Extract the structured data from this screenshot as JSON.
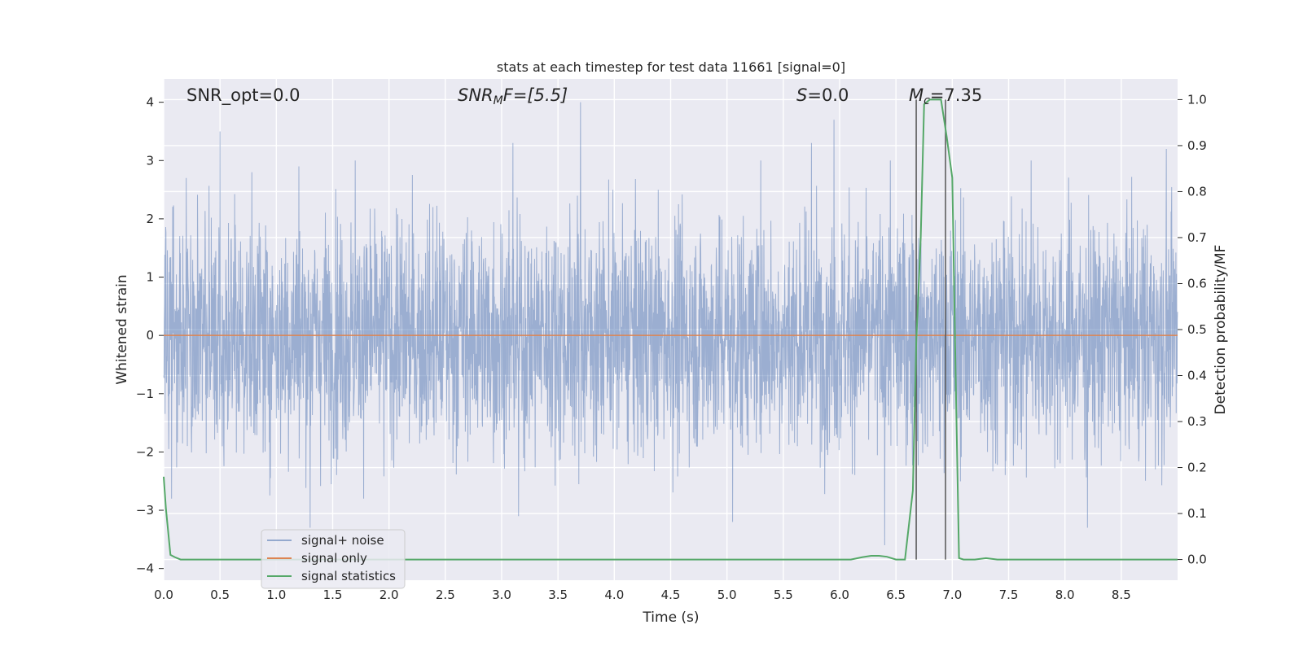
{
  "chart_data": {
    "type": "line",
    "title": "stats at each timestep for test data 11661 [signal=0]",
    "xlabel": "Time (s)",
    "ylabel": "Whitened strain",
    "ylabel_right": "Detection probability/MF",
    "xlim": [
      0.0,
      9.0
    ],
    "ylim": [
      -4.2,
      4.4
    ],
    "ylim_right": [
      -0.045,
      1.045
    ],
    "xticks": [
      "0.0",
      "0.5",
      "1.0",
      "1.5",
      "2.0",
      "2.5",
      "3.0",
      "3.5",
      "4.0",
      "4.5",
      "5.0",
      "5.5",
      "6.0",
      "6.5",
      "7.0",
      "7.5",
      "8.0",
      "8.5"
    ],
    "yticks": [
      "4",
      "3",
      "2",
      "1",
      "0",
      "−1",
      "−2",
      "−3",
      "−4"
    ],
    "yticks_right": [
      "1.0",
      "0.9",
      "0.8",
      "0.7",
      "0.6",
      "0.5",
      "0.4",
      "0.3",
      "0.2",
      "0.1",
      "0.0"
    ],
    "grid": true,
    "legend_position": "lower-left",
    "annotations": {
      "snr_opt": "SNR_opt=0.0",
      "snr_mf_main": "SNR",
      "snr_mf_sub": "M",
      "snr_mf_rest": "F=[5.5]",
      "s_main": "S",
      "s_rest": "=0.0",
      "mc_main": "M",
      "mc_sub": "c",
      "mc_rest": "=7.35"
    },
    "vertical_lines_x": [
      6.68,
      6.94
    ],
    "series": [
      {
        "name": "signal+ noise",
        "color": "#4c72b0",
        "axis": "left",
        "description_envelope": {
          "x_range": [
            0.0,
            9.0
          ],
          "approx_sigma": 1.0,
          "peak_spikes": [
            {
              "x": 0.5,
              "y": 3.5
            },
            {
              "x": 0.2,
              "y": 2.7
            },
            {
              "x": 1.2,
              "y": 2.9
            },
            {
              "x": 1.3,
              "y": -3.3
            },
            {
              "x": 1.7,
              "y": 3.0
            },
            {
              "x": 3.1,
              "y": 3.3
            },
            {
              "x": 3.15,
              "y": -3.1
            },
            {
              "x": 3.7,
              "y": 4.0
            },
            {
              "x": 5.05,
              "y": -3.2
            },
            {
              "x": 5.3,
              "y": 3.0
            },
            {
              "x": 5.75,
              "y": 3.3
            },
            {
              "x": 5.95,
              "y": 3.7
            },
            {
              "x": 6.4,
              "y": -3.6
            },
            {
              "x": 6.45,
              "y": 3.0
            },
            {
              "x": 7.7,
              "y": 3.0
            },
            {
              "x": 8.2,
              "y": -3.3
            },
            {
              "x": 8.9,
              "y": 3.2
            }
          ]
        }
      },
      {
        "name": "signal only",
        "color": "#dd8452",
        "axis": "left",
        "x": [
          0.0,
          9.0
        ],
        "y": [
          0.0,
          0.0
        ]
      },
      {
        "name": "signal statistics",
        "color": "#55a868",
        "axis": "right",
        "x": [
          0.0,
          0.02,
          0.06,
          0.1,
          0.15,
          6.1,
          6.2,
          6.28,
          6.35,
          6.42,
          6.5,
          6.58,
          6.65,
          6.68,
          6.72,
          6.75,
          6.8,
          6.86,
          6.9,
          6.95,
          7.0,
          7.03,
          7.06,
          7.1,
          7.2,
          7.3,
          7.4,
          7.5,
          9.0
        ],
        "y": [
          0.18,
          0.11,
          0.01,
          0.005,
          0.0,
          0.0,
          0.005,
          0.008,
          0.008,
          0.006,
          0.0,
          0.0,
          0.15,
          0.47,
          0.7,
          0.99,
          1.0,
          1.0,
          1.0,
          0.92,
          0.83,
          0.4,
          0.003,
          0.0,
          0.0,
          0.003,
          0.0,
          0.0,
          0.0
        ]
      }
    ]
  }
}
